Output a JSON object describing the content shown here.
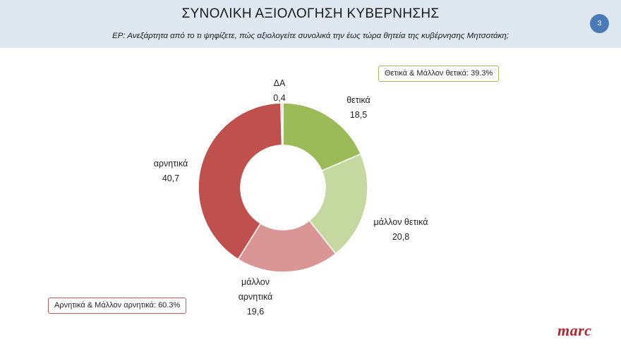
{
  "header": {
    "title": "ΣΥΝΟΛΙΚΗ ΑΞΙΟΛΟΓΗΣΗ ΚΥΒΕΡΝΗΣΗΣ",
    "subtitle": "ΕΡ: Ανεξάρτητα από το τι ψηφίζετε, πώς αξιολογείτε συνολικά την έως τώρα θητεία της κυβέρνησης Μητσοτάκη;",
    "page_number": "3"
  },
  "summary": {
    "positive": "Θετικά & Μάλλον θετικά: 39.3%",
    "negative": "Αρνητικά & Μάλλον αρνητικά: 60.3%"
  },
  "logo_text": "marc",
  "chart_data": {
    "type": "pie",
    "variant": "donut",
    "start": "top",
    "direction": "clockwise",
    "slices": [
      {
        "label": [
          "θετικά"
        ],
        "value": 18.5,
        "value_label": "18,5",
        "color": "#9bbb59"
      },
      {
        "label": [
          "μάλλον θετικά"
        ],
        "value": 20.8,
        "value_label": "20,8",
        "color": "#c4d8a0"
      },
      {
        "label": [
          "μάλλον",
          "αρνητικά"
        ],
        "value": 19.6,
        "value_label": "19,6",
        "color": "#d99694"
      },
      {
        "label": [
          "αρνητικά"
        ],
        "value": 40.7,
        "value_label": "40,7",
        "color": "#c0504d"
      },
      {
        "label": [
          "ΔΑ"
        ],
        "value": 0.4,
        "value_label": "0,4",
        "color": "#d9d9d9"
      }
    ]
  }
}
